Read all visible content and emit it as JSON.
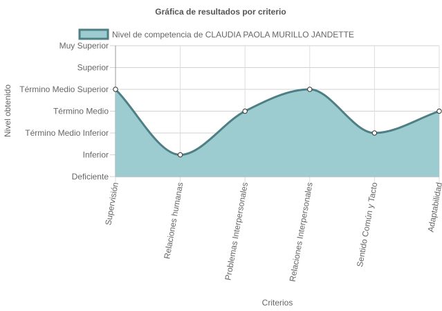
{
  "chart_data": {
    "type": "area",
    "title": "Gráfica de resultados por criterio",
    "xlabel": "Criterios",
    "ylabel": "Nivel obtenido",
    "categories": [
      "Supervisión",
      "Relaciones humanas",
      "Problemas Interpersonales",
      "Relaciones Interpersonales",
      "Sentido Común y Tacto",
      "Adaptabilidad"
    ],
    "y_levels": [
      "Deficiente",
      "Inferior",
      "Término Medio Inferior",
      "Término Medio",
      "Término Medio Superior",
      "Superior",
      "Muy Superior"
    ],
    "ylim": [
      0,
      6
    ],
    "grid": true,
    "legend_position": "top",
    "series": [
      {
        "name": "Nivel de competencia de CLAUDIA PAOLA MURILLO JANDETTE",
        "values": [
          4,
          1,
          3,
          4,
          2,
          3
        ],
        "fill_color": "#9ccccf",
        "line_color": "#4e7f84"
      }
    ]
  }
}
